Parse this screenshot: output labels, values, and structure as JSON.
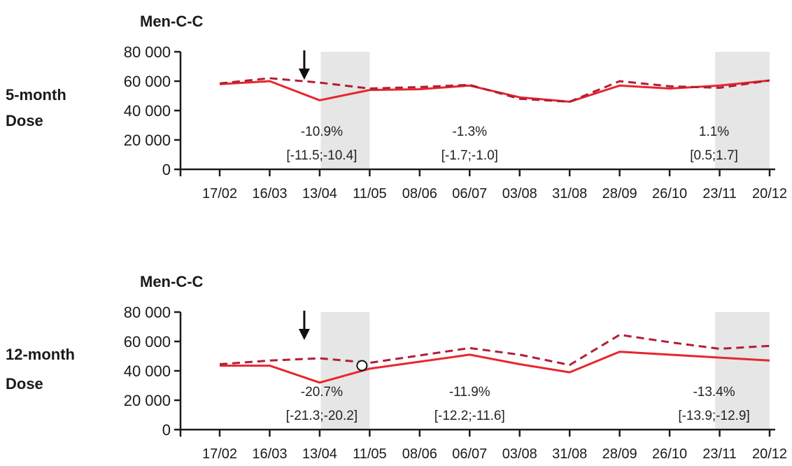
{
  "colors": {
    "observed": "#e8262d",
    "expected": "#b01e38",
    "shade": "#e6e6e6",
    "axis": "#1a1a1a"
  },
  "chart_data": [
    {
      "type": "line",
      "title": "Men-C-C",
      "row_label": [
        "5-month",
        "Dose"
      ],
      "ylim": [
        0,
        80000
      ],
      "yticks": [
        0,
        20000,
        40000,
        60000,
        80000
      ],
      "ytick_labels": [
        "0",
        "20 000",
        "40 000",
        "60 000",
        "80 000"
      ],
      "categories": [
        "17/02",
        "16/03",
        "13/04",
        "11/05",
        "08/06",
        "06/07",
        "03/08",
        "31/08",
        "28/09",
        "26/10",
        "23/11",
        "20/12"
      ],
      "series": [
        {
          "style": "solid",
          "x": [
            "17/02",
            "16/03",
            "13/04",
            "11/05",
            "08/06",
            "06/07",
            "03/08",
            "31/08",
            "28/09",
            "26/10",
            "23/11",
            "20/12"
          ],
          "values": [
            58000,
            60000,
            47000,
            54000,
            54500,
            57000,
            49000,
            46000,
            57000,
            55000,
            57000,
            60500
          ]
        },
        {
          "style": "dashed",
          "x": [
            "17/02",
            "16/03",
            "13/04",
            "11/05",
            "08/06",
            "06/07",
            "03/08",
            "31/08",
            "28/09",
            "26/10",
            "23/11",
            "20/12"
          ],
          "values": [
            58500,
            62000,
            59000,
            55000,
            56000,
            57500,
            48000,
            46000,
            60000,
            56500,
            55500,
            60500
          ]
        }
      ],
      "shaded_periods": [
        {
          "from": "16/03",
          "to": "11/05"
        },
        {
          "from": "26/10",
          "to": "20/12"
        }
      ],
      "annotations": [
        {
          "at": "13/04",
          "pct": "-10.9%",
          "ci": "[-11.5;-10.4]"
        },
        {
          "at": "06/07",
          "pct": "-1.3%",
          "ci": "[-1.7;-1.0]"
        },
        {
          "at": "23/11",
          "pct": "1.1%",
          "ci": "[0.5;1.7]"
        }
      ],
      "arrow_at": "13/04",
      "marker": null,
      "grid": false
    },
    {
      "type": "line",
      "title": "Men-C-C",
      "row_label": [
        "12-month",
        "Dose"
      ],
      "ylim": [
        0,
        80000
      ],
      "yticks": [
        0,
        20000,
        40000,
        60000,
        80000
      ],
      "ytick_labels": [
        "0",
        "20 000",
        "40 000",
        "60 000",
        "80 000"
      ],
      "categories": [
        "17/02",
        "16/03",
        "13/04",
        "11/05",
        "08/06",
        "06/07",
        "03/08",
        "31/08",
        "28/09",
        "26/10",
        "23/11",
        "20/12"
      ],
      "series": [
        {
          "style": "solid",
          "x": [
            "17/02",
            "16/03",
            "13/04",
            "11/05",
            "06/07",
            "03/08",
            "31/08",
            "28/09",
            "20/12"
          ],
          "values": [
            43500,
            43500,
            32000,
            41500,
            51000,
            44500,
            39000,
            53000,
            47000
          ]
        },
        {
          "style": "dashed",
          "x": [
            "17/02",
            "16/03",
            "13/04",
            "11/05",
            "06/07",
            "03/08",
            "31/08",
            "28/09",
            "26/10",
            "23/11",
            "20/12"
          ],
          "values": [
            44500,
            47000,
            48500,
            45500,
            55500,
            51000,
            44000,
            64500,
            59500,
            55000,
            57000
          ]
        }
      ],
      "shaded_periods": [
        {
          "from": "16/03",
          "to": "11/05"
        },
        {
          "from": "26/10",
          "to": "20/12"
        }
      ],
      "annotations": [
        {
          "at": "13/04",
          "pct": "-20.7%",
          "ci": "[-21.3;-20.2]"
        },
        {
          "at": "06/07",
          "pct": "-11.9%",
          "ci": "[-12.2;-11.6]"
        },
        {
          "at": "23/11",
          "pct": "-13.4%",
          "ci": "[-13.9;-12.9]"
        }
      ],
      "arrow_at": "13/04",
      "marker": {
        "x": "11/05",
        "value": 45000
      },
      "grid": false
    }
  ]
}
